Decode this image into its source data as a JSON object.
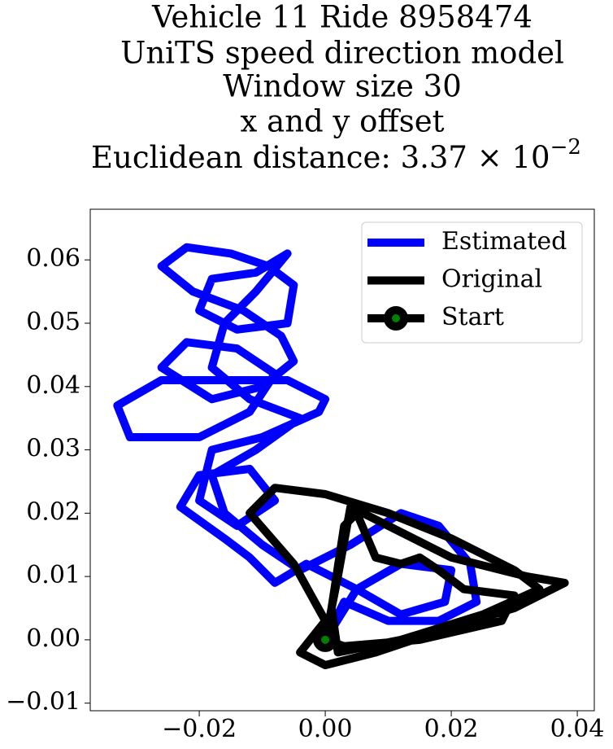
{
  "chart_data": {
    "type": "line",
    "title": [
      "Vehicle 11 Ride 8958474",
      "UniTS speed direction model",
      "Window size 30",
      "x and y offset",
      "Euclidean distance: 3.37 × 10"
    ],
    "title_superscript": "−2",
    "xlim": [
      -0.0373,
      0.0427
    ],
    "ylim": [
      -0.0112,
      0.068
    ],
    "xticks": [
      {
        "value": -0.02,
        "label": "−0.02"
      },
      {
        "value": 0,
        "label": "0.00"
      },
      {
        "value": 0.02,
        "label": "0.02"
      },
      {
        "value": 0.04,
        "label": "0.04"
      }
    ],
    "yticks": [
      {
        "value": -0.01,
        "label": "−0.01"
      },
      {
        "value": 0,
        "label": "0.00"
      },
      {
        "value": 0.01,
        "label": "0.01"
      },
      {
        "value": 0.02,
        "label": "0.02"
      },
      {
        "value": 0.03,
        "label": "0.03"
      },
      {
        "value": 0.04,
        "label": "0.04"
      },
      {
        "value": 0.05,
        "label": "0.05"
      },
      {
        "value": 0.06,
        "label": "0.06"
      }
    ],
    "grid": false,
    "legend": "upper right",
    "series": [
      {
        "name": "Estimated",
        "color": "blue",
        "x": [
          0.0,
          0.005,
          0.012,
          0.02,
          0.019,
          0.012,
          0.005,
          -0.003,
          -0.008,
          -0.012,
          -0.016,
          -0.023,
          -0.02,
          -0.012,
          -0.008,
          -0.014,
          -0.02,
          -0.018,
          -0.01,
          -0.001,
          0.0,
          -0.006,
          -0.016,
          -0.026,
          -0.033,
          -0.031,
          -0.02,
          -0.012,
          -0.008,
          -0.014,
          -0.022,
          -0.026,
          -0.018,
          -0.01,
          -0.005,
          -0.007,
          -0.013,
          -0.021,
          -0.026,
          -0.022,
          -0.015,
          -0.009,
          -0.005,
          -0.006,
          -0.014,
          -0.02,
          -0.018,
          -0.011,
          -0.006,
          -0.011,
          -0.016,
          -0.018,
          -0.012,
          -0.004,
          -0.011,
          -0.018,
          -0.016,
          -0.01,
          -0.004,
          0.004,
          0.012,
          0.018,
          0.023,
          0.024,
          0.018,
          0.01,
          0.003,
          0.001
        ],
        "y": [
          0.0,
          0.008,
          0.012,
          0.011,
          0.006,
          0.004,
          0.008,
          0.012,
          0.009,
          0.013,
          0.016,
          0.021,
          0.026,
          0.027,
          0.022,
          0.018,
          0.022,
          0.03,
          0.032,
          0.036,
          0.038,
          0.041,
          0.041,
          0.041,
          0.037,
          0.032,
          0.032,
          0.036,
          0.042,
          0.046,
          0.047,
          0.043,
          0.038,
          0.04,
          0.044,
          0.048,
          0.052,
          0.055,
          0.059,
          0.062,
          0.061,
          0.059,
          0.056,
          0.05,
          0.049,
          0.052,
          0.057,
          0.058,
          0.061,
          0.055,
          0.05,
          0.043,
          0.038,
          0.035,
          0.03,
          0.026,
          0.02,
          0.015,
          0.011,
          0.015,
          0.02,
          0.018,
          0.012,
          0.006,
          0.003,
          0.003,
          0.006,
          0.002
        ]
      },
      {
        "name": "Original",
        "color": "black",
        "x": [
          0,
          0.002,
          0.004,
          0.008,
          0.02,
          0.032,
          0.038,
          0.03,
          0.02,
          0.008,
          0.0,
          -0.004,
          0.0,
          -0.005,
          -0.012,
          -0.008,
          0.0,
          0.01,
          0.02,
          0.03,
          0.034,
          0.025,
          0.012,
          0.002,
          0.001,
          0.003,
          0.005,
          0.008,
          0.012,
          0.015,
          0.018,
          0.022,
          0.03,
          0.028,
          0.015,
          0.003,
          0
        ],
        "y": [
          0,
          0.01,
          0.021,
          0.019,
          0.013,
          0.01,
          0.009,
          0.005,
          0.002,
          -0.002,
          -0.004,
          -0.002,
          0.003,
          0.012,
          0.02,
          0.024,
          0.023,
          0.02,
          0.016,
          0.011,
          0.008,
          0.004,
          0.0,
          -0.002,
          0.005,
          0.018,
          0.02,
          0.013,
          0.012,
          0.013,
          0.011,
          0.008,
          0.007,
          0.003,
          0.0,
          -0.001,
          0
        ]
      },
      {
        "name": "Start",
        "color": "black",
        "marker_color": "green",
        "x": [
          0
        ],
        "y": [
          0
        ]
      }
    ]
  }
}
